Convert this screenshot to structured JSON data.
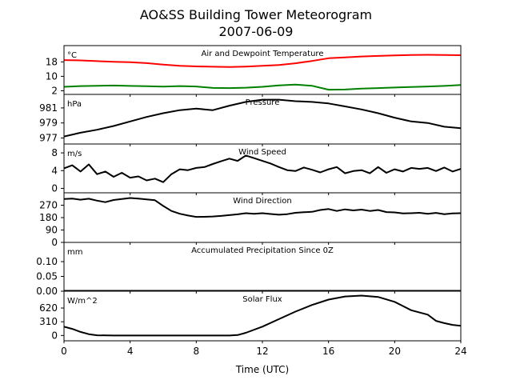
{
  "title_line1": "AO&SS Building Tower Meteorogram",
  "title_line2": "2007-06-09",
  "xlabel": "Time (UTC)",
  "chart_data": [
    {
      "type": "line",
      "title": "Air and Dewpoint Temperature",
      "unit": "°C",
      "ylim": [
        0,
        27
      ],
      "yticks": [
        2,
        10,
        18
      ],
      "x_tick_labels": [
        "0",
        "4",
        "8",
        "12",
        "16",
        "20",
        "24"
      ],
      "series": [
        {
          "color": "#ff0000",
          "x": [
            0,
            1,
            2,
            3,
            4,
            5,
            6,
            7,
            8,
            9,
            10,
            11,
            12,
            13,
            14,
            15,
            16,
            17,
            18,
            19,
            20,
            21,
            22,
            23,
            24
          ],
          "y": [
            19,
            18.8,
            18.4,
            18,
            17.8,
            17.3,
            16.5,
            15.8,
            15.5,
            15.3,
            15.2,
            15.4,
            15.8,
            16.3,
            17.2,
            18.5,
            20,
            20.5,
            21,
            21.3,
            21.6,
            21.8,
            21.9,
            21.8,
            21.7
          ]
        },
        {
          "color": "#008000",
          "x": [
            0,
            1,
            2,
            3,
            4,
            5,
            6,
            7,
            8,
            9,
            10,
            11,
            12,
            13,
            14,
            15,
            16,
            17,
            18,
            19,
            20,
            21,
            22,
            23,
            24
          ],
          "y": [
            4.2,
            4.6,
            4.8,
            4.9,
            4.7,
            4.5,
            4.3,
            4.6,
            4.4,
            3.6,
            3.5,
            3.7,
            4.2,
            5,
            5.4,
            4.8,
            2.6,
            2.7,
            3.2,
            3.5,
            3.8,
            4.1,
            4.4,
            4.7,
            5.2
          ]
        }
      ]
    },
    {
      "type": "line",
      "title": "Pressure",
      "unit": "hPa",
      "ylim": [
        976.2,
        982.8
      ],
      "yticks": [
        977,
        979,
        981
      ],
      "series": [
        {
          "color": "#000000",
          "x": [
            0,
            1,
            2,
            3,
            4,
            5,
            6,
            7,
            8,
            9,
            10,
            11,
            12,
            13,
            14,
            15,
            16,
            17,
            18,
            19,
            20,
            21,
            22,
            23,
            24
          ],
          "y": [
            977.2,
            977.7,
            978.1,
            978.6,
            979.2,
            979.8,
            980.3,
            980.7,
            980.9,
            980.7,
            981.3,
            981.8,
            982.1,
            982.1,
            981.9,
            981.8,
            981.6,
            981.2,
            980.8,
            980.3,
            979.7,
            979.2,
            979.0,
            978.5,
            978.3
          ]
        }
      ]
    },
    {
      "type": "line",
      "title": "Wind Speed",
      "unit": "m/s",
      "ylim": [
        -1,
        10
      ],
      "yticks": [
        0,
        4,
        8
      ],
      "series": [
        {
          "color": "#000000",
          "x": [
            0,
            0.5,
            1,
            1.5,
            2,
            2.5,
            3,
            3.5,
            4,
            4.5,
            5,
            5.5,
            6,
            6.5,
            7,
            7.5,
            8,
            8.5,
            9,
            9.5,
            10,
            10.5,
            11,
            11.5,
            12,
            12.5,
            13,
            13.5,
            14,
            14.5,
            15,
            15.5,
            16,
            16.5,
            17,
            17.5,
            18,
            18.5,
            19,
            19.5,
            20,
            20.5,
            21,
            21.5,
            22,
            22.5,
            23,
            23.5,
            24
          ],
          "y": [
            4.5,
            5.2,
            3.8,
            5.4,
            3.2,
            3.8,
            2.6,
            3.5,
            2.4,
            2.7,
            1.8,
            2.2,
            1.4,
            3.2,
            4.3,
            4.1,
            4.6,
            4.8,
            5.5,
            6.1,
            6.7,
            6.2,
            7.4,
            6.8,
            6.2,
            5.6,
            4.8,
            4.1,
            3.9,
            4.7,
            4.2,
            3.6,
            4.3,
            4.8,
            3.4,
            3.9,
            4.1,
            3.4,
            4.8,
            3.5,
            4.3,
            3.8,
            4.6,
            4.4,
            4.6,
            3.9,
            4.7,
            3.8,
            4.4
          ]
        }
      ]
    },
    {
      "type": "line",
      "title": "Wind Direction",
      "unit": "",
      "ylim": [
        0,
        360
      ],
      "yticks": [
        0,
        90,
        180,
        270
      ],
      "series": [
        {
          "color": "#000000",
          "x": [
            0,
            0.5,
            1,
            1.5,
            2,
            2.5,
            3,
            3.5,
            4,
            4.5,
            5,
            5.5,
            6,
            6.5,
            7,
            7.5,
            8,
            8.5,
            9,
            9.5,
            10,
            10.5,
            11,
            11.5,
            12,
            12.5,
            13,
            13.5,
            14,
            14.5,
            15,
            15.5,
            16,
            16.5,
            17,
            17.5,
            18,
            18.5,
            19,
            19.5,
            20,
            20.5,
            21,
            21.5,
            22,
            22.5,
            23,
            23.5,
            24
          ],
          "y": [
            315,
            318,
            310,
            317,
            303,
            292,
            308,
            315,
            322,
            318,
            312,
            306,
            265,
            228,
            208,
            195,
            185,
            186,
            188,
            192,
            198,
            204,
            212,
            208,
            212,
            206,
            201,
            205,
            215,
            219,
            222,
            235,
            242,
            228,
            240,
            232,
            238,
            228,
            235,
            220,
            218,
            210,
            212,
            215,
            208,
            214,
            205,
            210,
            212
          ]
        }
      ]
    },
    {
      "type": "line",
      "title": "Accumulated Precipitation Since 0Z",
      "unit": "mm",
      "ylim": [
        0,
        0.165
      ],
      "yticks": [
        0,
        0.05,
        0.1
      ],
      "ytick_labels": [
        "0.00",
        "0.05",
        "0.10"
      ],
      "series": [
        {
          "color": "#000000",
          "x": [
            0,
            24
          ],
          "y": [
            0,
            0
          ]
        }
      ]
    },
    {
      "type": "line",
      "title": "Solar Flux",
      "unit": "W/m^2",
      "ylim": [
        -120,
        1000
      ],
      "yticks": [
        0,
        310,
        620
      ],
      "series": [
        {
          "color": "#000000",
          "x": [
            0,
            0.5,
            1,
            1.5,
            2,
            3,
            4,
            5,
            6,
            7,
            8,
            9,
            10,
            10.5,
            11,
            12,
            13,
            14,
            15,
            16,
            17,
            18,
            19,
            20,
            21,
            22,
            22.5,
            23,
            23.5,
            24
          ],
          "y": [
            200,
            150,
            80,
            30,
            5,
            0,
            0,
            0,
            0,
            0,
            0,
            0,
            0,
            10,
            60,
            200,
            370,
            540,
            690,
            810,
            880,
            900,
            870,
            760,
            570,
            470,
            330,
            280,
            240,
            220
          ]
        }
      ]
    }
  ]
}
